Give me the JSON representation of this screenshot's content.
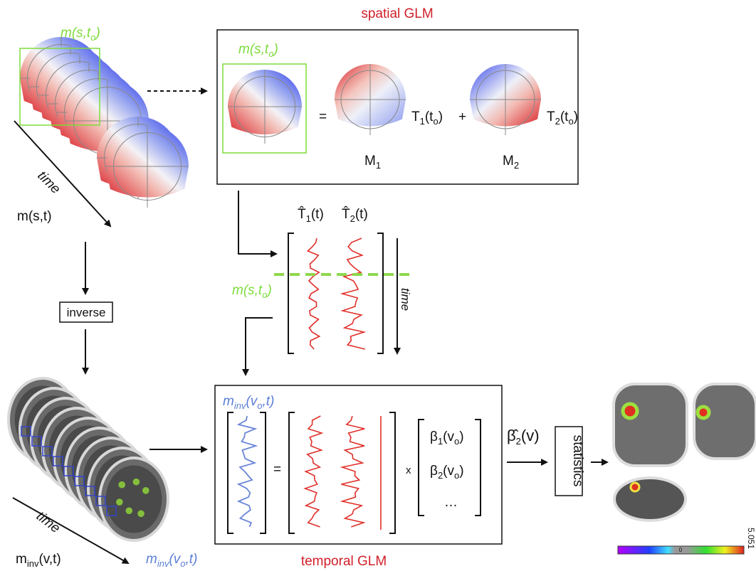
{
  "spatial_glm": {
    "title": "spatial GLM",
    "map_label": [
      "m(s,t",
      "o",
      ")"
    ],
    "equals": "=",
    "t1": [
      "T",
      "1",
      "(t",
      "o",
      ")"
    ],
    "plus": "+",
    "t2": [
      "T",
      "2",
      "(t",
      "o",
      ")"
    ],
    "m1": [
      "M",
      "1"
    ],
    "m2": [
      "M",
      "2"
    ]
  },
  "topomaps": {
    "label_top": [
      "m(s,t",
      "o",
      ")"
    ],
    "time": "time",
    "series_label": "m(s,t)"
  },
  "inverse": "inverse",
  "design_matrix": {
    "t1_hat": [
      "T̂",
      "1",
      "(t)"
    ],
    "t2_hat": [
      "T̂",
      "2",
      "(t)"
    ],
    "marker": [
      "m(s,t",
      "o",
      ")"
    ],
    "time": "time"
  },
  "source_series": {
    "time": "time",
    "label": [
      "m",
      "inv",
      "(v,t)"
    ],
    "voxel": [
      "m",
      "inv",
      "(v",
      "o",
      ",t)"
    ]
  },
  "temporal_glm": {
    "title": "temporal GLM",
    "lhs": [
      "m",
      "inv",
      "(v",
      "o",
      ",t)"
    ],
    "equals": "=",
    "times": "x",
    "beta1": [
      "β",
      "1",
      "(v",
      "o",
      ")"
    ],
    "beta2": [
      "β",
      "2",
      "(v",
      "o",
      ")"
    ],
    "ellipsis": "…"
  },
  "beta_hat": [
    "β̂",
    "2",
    "(v)"
  ],
  "statistics": "statistics",
  "colorbar": {
    "zero": "0",
    "max": "5.051"
  }
}
